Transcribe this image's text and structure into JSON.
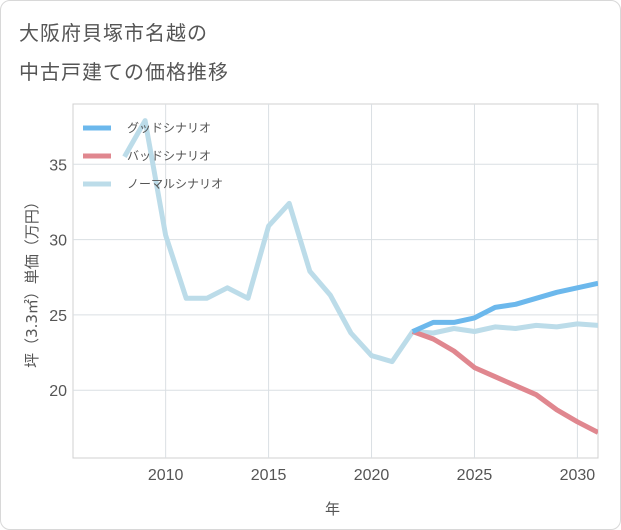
{
  "title": {
    "line1": "大阪府貝塚市名越の",
    "line2": "中古戸建ての価格推移"
  },
  "chart_data": {
    "type": "line",
    "title": "大阪府貝塚市名越の中古戸建ての価格推移",
    "xlabel": "年",
    "ylabel": "坪（3.3㎡）単価（万円）",
    "xlim": [
      2005.5,
      2031
    ],
    "ylim": [
      15.5,
      39
    ],
    "x_ticks": [
      2010,
      2015,
      2020,
      2025,
      2030
    ],
    "y_ticks": [
      20,
      25,
      30,
      35
    ],
    "grid": true,
    "legend_position": "top-left",
    "series": [
      {
        "name": "グッドシナリオ",
        "color": "#6cb8ec",
        "x": [
          2022,
          2023,
          2024,
          2025,
          2026,
          2027,
          2028,
          2029,
          2030,
          2031
        ],
        "values": [
          23.9,
          24.5,
          24.5,
          24.8,
          25.5,
          25.7,
          26.1,
          26.5,
          26.8,
          27.1
        ]
      },
      {
        "name": "バッドシナリオ",
        "color": "#e0878f",
        "x": [
          2022,
          2023,
          2024,
          2025,
          2026,
          2027,
          2028,
          2029,
          2030,
          2031
        ],
        "values": [
          23.9,
          23.4,
          22.6,
          21.5,
          20.9,
          20.3,
          19.7,
          18.7,
          17.9,
          17.2
        ]
      },
      {
        "name": "ノーマルシナリオ",
        "color": "#bcdce9",
        "x": [
          2008,
          2009,
          2010,
          2011,
          2012,
          2013,
          2014,
          2015,
          2016,
          2017,
          2018,
          2019,
          2020,
          2021,
          2022,
          2023,
          2024,
          2025,
          2026,
          2027,
          2028,
          2029,
          2030,
          2031
        ],
        "values": [
          35.5,
          37.9,
          30.3,
          26.1,
          26.1,
          26.8,
          26.1,
          30.9,
          32.4,
          27.9,
          26.3,
          23.8,
          22.3,
          21.9,
          23.9,
          23.8,
          24.1,
          23.9,
          24.2,
          24.1,
          24.3,
          24.2,
          24.4,
          24.3
        ]
      }
    ]
  }
}
